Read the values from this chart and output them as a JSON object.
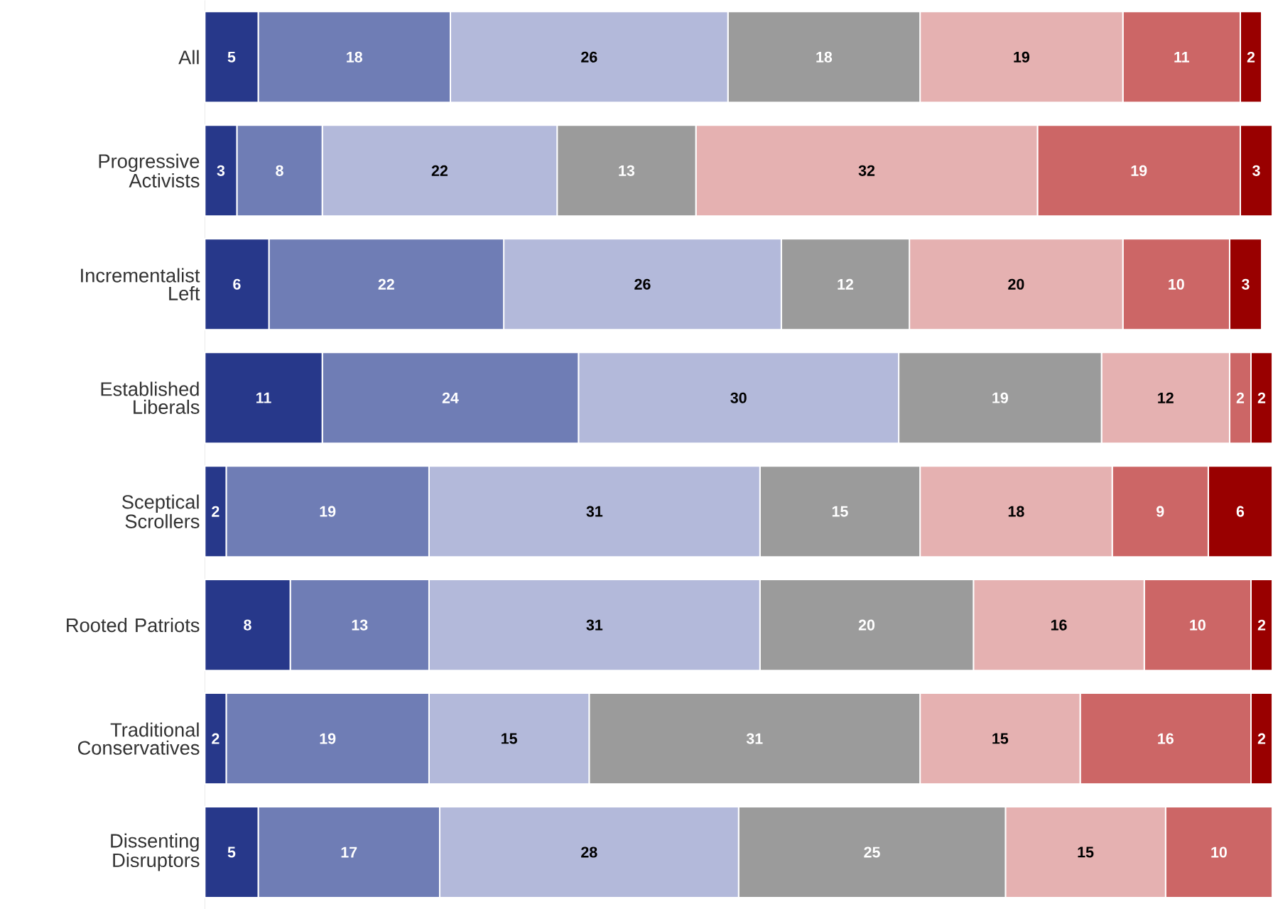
{
  "chart_data": {
    "type": "bar",
    "orientation": "horizontal",
    "stacked": true,
    "data_labels": true,
    "categories": [
      "All",
      "Progressive Activists",
      "Incrementalist Left",
      "Established Liberals",
      "Sceptical Scrollers",
      "Rooted Patriots",
      "Traditional Conservatives",
      "Dissenting Disruptors"
    ],
    "series": [
      {
        "color": "#27388a",
        "values": [
          5,
          3,
          6,
          11,
          2,
          8,
          2,
          5
        ]
      },
      {
        "color": "#6f7db5",
        "values": [
          18,
          8,
          22,
          24,
          19,
          13,
          19,
          17
        ]
      },
      {
        "color": "#b3b9da",
        "values": [
          26,
          22,
          26,
          30,
          31,
          31,
          15,
          28
        ]
      },
      {
        "color": "#9b9b9b",
        "values": [
          18,
          13,
          12,
          19,
          15,
          20,
          31,
          25
        ]
      },
      {
        "color": "#e5b1b1",
        "values": [
          19,
          32,
          20,
          12,
          18,
          16,
          15,
          15
        ]
      },
      {
        "color": "#cc6666",
        "values": [
          11,
          19,
          10,
          2,
          9,
          10,
          16,
          10
        ]
      },
      {
        "color": "#990000",
        "values": [
          2,
          3,
          3,
          2,
          6,
          2,
          2,
          null
        ]
      }
    ]
  }
}
